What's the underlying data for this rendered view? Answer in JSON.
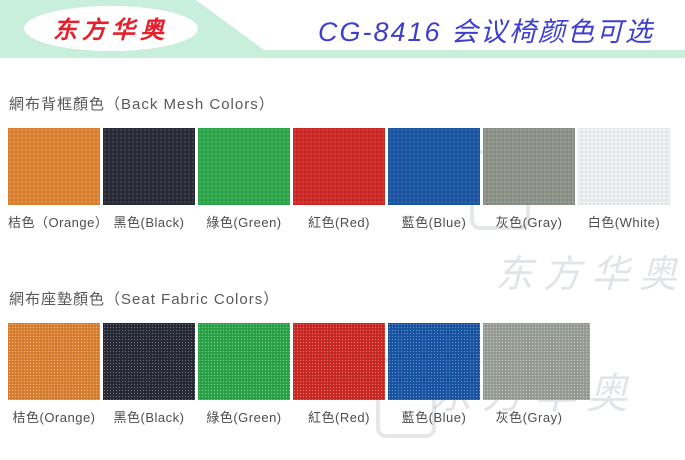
{
  "header": {
    "logo_text": "东方华奥",
    "title": "CG-8416 会议椅颜色可选",
    "banner_color": "#C7EFDB",
    "logo_text_color": "#E71F2B",
    "title_color": "#3E3ED0"
  },
  "watermark": {
    "text": "东方华奥"
  },
  "sections": [
    {
      "heading": "網布背框顏色（Back Mesh Colors）",
      "swatches": [
        {
          "name": "orange",
          "label": "桔色（Orange）",
          "color": "#DD8434"
        },
        {
          "name": "black",
          "label": "黑色(Black)",
          "color": "#2A2D37"
        },
        {
          "name": "green",
          "label": "綠色(Green)",
          "color": "#2EA74B"
        },
        {
          "name": "red",
          "label": "紅色(Red)",
          "color": "#CF2A27"
        },
        {
          "name": "blue",
          "label": "藍色(Blue)",
          "color": "#1C57A4"
        },
        {
          "name": "gray",
          "label": "灰色(Gray)",
          "color": "#8E9389"
        },
        {
          "name": "white",
          "label": "白色(White)",
          "color": "#EDF0F2"
        }
      ]
    },
    {
      "heading": "網布座墊顏色（Seat Fabric Colors）",
      "swatches": [
        {
          "name": "orange",
          "label": "桔色(Orange)",
          "color": "#DD8434"
        },
        {
          "name": "black",
          "label": "黑色(Black)",
          "color": "#2A2D37"
        },
        {
          "name": "green",
          "label": "綠色(Green)",
          "color": "#2CA74A"
        },
        {
          "name": "red",
          "label": "紅色(Red)",
          "color": "#CE2B27"
        },
        {
          "name": "blue",
          "label": "藍色(Blue)",
          "color": "#1C58A8"
        },
        {
          "name": "gray",
          "label": "灰色(Gray)",
          "color": "#9CA29A"
        }
      ]
    }
  ]
}
